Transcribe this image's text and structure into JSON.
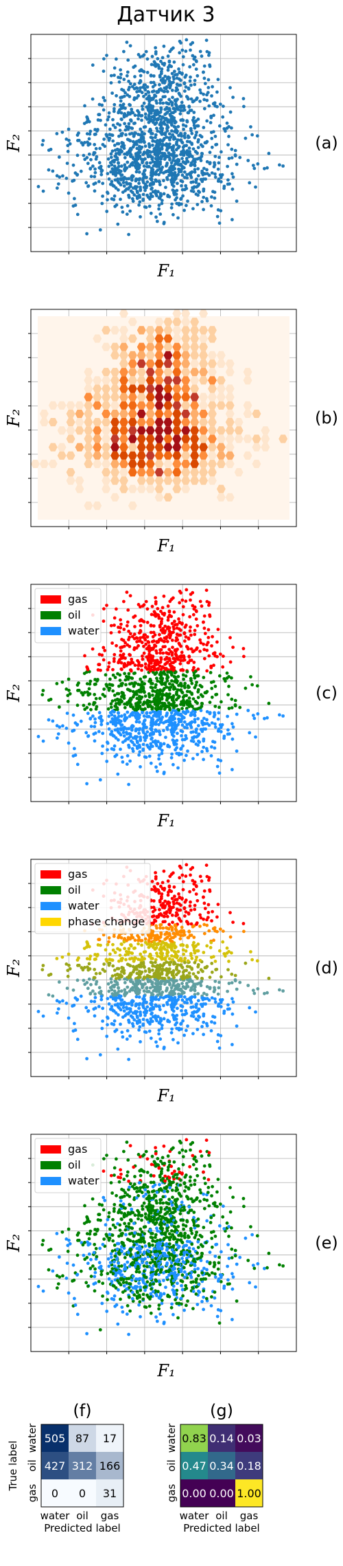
{
  "figure": {
    "title": "Датчик 3"
  },
  "colors": {
    "scatter_blue": "#1f77b4",
    "gas": "#ff0000",
    "oil": "#008000",
    "water": "#1e90ff",
    "phase_change": "#ffd700",
    "grid": "#b0b0b0"
  },
  "chart_data": [
    {
      "id": "a",
      "panel_label": "(a)",
      "type": "scatter",
      "xlabel": "F₁",
      "ylabel": "F₂",
      "description_points": "single-series scatter, approx. 1600 points",
      "grid": true,
      "ticks_labels": false,
      "series": [
        {
          "color": "#1f77b4"
        }
      ]
    },
    {
      "id": "b",
      "panel_label": "(b)",
      "type": "heatmap",
      "xlabel": "F₁",
      "ylabel": "F₂",
      "colormap": "Oranges/Reds hexbin density",
      "grid": true,
      "ticks_labels": false
    },
    {
      "id": "c",
      "panel_label": "(c)",
      "type": "scatter",
      "xlabel": "F₁",
      "ylabel": "F₂",
      "legend": [
        {
          "label": "gas",
          "color": "#ff0000"
        },
        {
          "label": "oil",
          "color": "#008000"
        },
        {
          "label": "water",
          "color": "#1e90ff"
        }
      ],
      "legend_position": "top-left",
      "grid": true,
      "ticks_labels": false
    },
    {
      "id": "d",
      "panel_label": "(d)",
      "type": "scatter",
      "xlabel": "F₁",
      "ylabel": "F₂",
      "legend": [
        {
          "label": "gas",
          "color": "#ff0000"
        },
        {
          "label": "oil",
          "color": "#008000"
        },
        {
          "label": "water",
          "color": "#1e90ff"
        },
        {
          "label": "phase change",
          "color": "#ffd700"
        }
      ],
      "legend_position": "top-left",
      "grid": true,
      "ticks_labels": false
    },
    {
      "id": "e",
      "panel_label": "(e)",
      "type": "scatter",
      "xlabel": "F₁",
      "ylabel": "F₂",
      "legend": [
        {
          "label": "gas",
          "color": "#ff0000"
        },
        {
          "label": "oil",
          "color": "#008000"
        },
        {
          "label": "water",
          "color": "#1e90ff"
        }
      ],
      "legend_position": "top-left",
      "grid": true,
      "ticks_labels": false
    },
    {
      "id": "f",
      "panel_label": "(f)",
      "type": "heatmap",
      "kind": "confusion_matrix",
      "colormap": "Blues",
      "xlabel": "Predicted label",
      "ylabel": "True label",
      "x_categories": [
        "water",
        "oil",
        "gas"
      ],
      "y_categories": [
        "water",
        "oil",
        "gas"
      ],
      "values": [
        [
          505,
          87,
          17
        ],
        [
          427,
          312,
          166
        ],
        [
          0,
          0,
          31
        ]
      ],
      "labels": [
        [
          "505",
          "87",
          "17"
        ],
        [
          "427",
          "312",
          "166"
        ],
        [
          "0",
          "0",
          "31"
        ]
      ]
    },
    {
      "id": "g",
      "panel_label": "(g)",
      "type": "heatmap",
      "kind": "confusion_matrix_normalized",
      "colormap": "viridis",
      "xlabel": "Predicted label",
      "ylabel": "True label",
      "x_categories": [
        "water",
        "oil",
        "gas"
      ],
      "y_categories": [
        "water",
        "oil",
        "gas"
      ],
      "values": [
        [
          0.83,
          0.14,
          0.03
        ],
        [
          0.47,
          0.34,
          0.18
        ],
        [
          0.0,
          0.0,
          1.0
        ]
      ],
      "labels": [
        [
          "0.83",
          "0.14",
          "0.03"
        ],
        [
          "0.47",
          "0.34",
          "0.18"
        ],
        [
          "0.00",
          "0.00",
          "1.00"
        ]
      ]
    }
  ]
}
